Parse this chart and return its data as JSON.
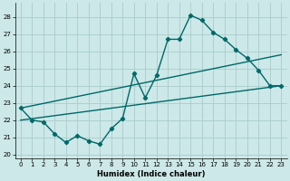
{
  "xlabel": "Humidex (Indice chaleur)",
  "bg_color": "#cce8e8",
  "grid_color": "#aacccc",
  "line_color": "#006868",
  "xlim": [
    -0.5,
    23.5
  ],
  "ylim": [
    19.8,
    28.8
  ],
  "yticks": [
    20,
    21,
    22,
    23,
    24,
    25,
    26,
    27,
    28
  ],
  "xticks": [
    0,
    1,
    2,
    3,
    4,
    5,
    6,
    7,
    8,
    9,
    10,
    11,
    12,
    13,
    14,
    15,
    16,
    17,
    18,
    19,
    20,
    21,
    22,
    23
  ],
  "main_x": [
    0,
    1,
    2,
    3,
    4,
    5,
    6,
    7,
    8,
    9,
    10,
    11,
    12,
    13,
    14,
    15,
    16,
    17,
    18,
    19,
    20,
    21,
    22,
    23
  ],
  "main_y": [
    22.7,
    22.0,
    21.9,
    21.2,
    20.7,
    21.1,
    20.8,
    20.6,
    21.5,
    22.1,
    24.7,
    23.3,
    24.6,
    26.7,
    26.7,
    28.1,
    27.8,
    27.1,
    26.7,
    26.1,
    25.6,
    24.9,
    24.0,
    24.0
  ],
  "upper_trend_x": [
    0,
    23
  ],
  "upper_trend_y": [
    22.7,
    25.8
  ],
  "lower_trend_x": [
    0,
    23
  ],
  "lower_trend_y": [
    22.0,
    24.0
  ]
}
